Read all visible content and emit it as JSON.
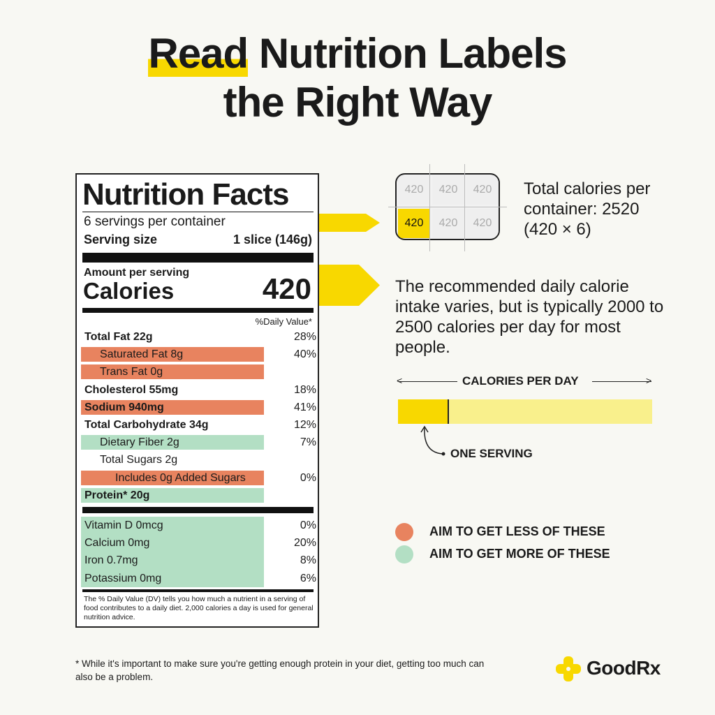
{
  "title": {
    "highlight": "Read",
    "line1_rest": " Nutrition Labels",
    "line2": "the Right Way"
  },
  "label": {
    "heading": "Nutrition Facts",
    "servings": "6 servings per container",
    "serving_size_label": "Serving size",
    "serving_size_value": "1 slice (146g)",
    "amount_per_serving": "Amount per serving",
    "calories_label": "Calories",
    "calories_value": "420",
    "dv_header": "%Daily Value*",
    "rows": [
      {
        "name": "Total Fat 22g",
        "dv": "28%",
        "bold": true,
        "indent": 0,
        "hl": ""
      },
      {
        "name": "Saturated Fat 8g",
        "dv": "40%",
        "bold": false,
        "indent": 1,
        "hl": "less"
      },
      {
        "name": "Trans Fat 0g",
        "dv": "",
        "bold": false,
        "indent": 1,
        "hl": "less"
      },
      {
        "name": "Cholesterol 55mg",
        "dv": "18%",
        "bold": true,
        "indent": 0,
        "hl": ""
      },
      {
        "name": "Sodium 940mg",
        "dv": "41%",
        "bold": true,
        "indent": 0,
        "hl": "less"
      },
      {
        "name": "Total Carbohydrate 34g",
        "dv": "12%",
        "bold": true,
        "indent": 0,
        "hl": ""
      },
      {
        "name": "Dietary Fiber 2g",
        "dv": "7%",
        "bold": false,
        "indent": 1,
        "hl": "more"
      },
      {
        "name": "Total Sugars 2g",
        "dv": "",
        "bold": false,
        "indent": 1,
        "hl": ""
      },
      {
        "name": "Includes 0g Added Sugars",
        "dv": "0%",
        "bold": false,
        "indent": 2,
        "hl": "less"
      },
      {
        "name": "Protein* 20g",
        "dv": "",
        "bold": true,
        "indent": 0,
        "hl": "more"
      }
    ],
    "vitamins": [
      {
        "name": "Vitamin D 0mcg",
        "dv": "0%"
      },
      {
        "name": "Calcium 0mg",
        "dv": "20%"
      },
      {
        "name": "Iron 0.7mg",
        "dv": "8%"
      },
      {
        "name": "Potassium 0mg",
        "dv": "6%"
      }
    ],
    "footnote": "The % Daily Value (DV) tells you how much a nutrient in a serving of food contributes to a daily diet. 2,000 calories a day is used for general nutrition advice."
  },
  "container": {
    "cells": [
      "420",
      "420",
      "420",
      "420",
      "420",
      "420"
    ],
    "highlighted_index": 3,
    "text": "Total calories per container: 2520 (420 × 6)"
  },
  "daily_text": "The recommended daily calorie intake varies, but is typically 2000 to 2500 calories per day for most people.",
  "calories_bar": {
    "label": "CALORIES PER DAY",
    "serving_label": "ONE SERVING",
    "serving_fraction": 0.2
  },
  "legend": [
    {
      "label": "AIM TO GET LESS OF THESE",
      "color": "#e8835f"
    },
    {
      "label": "AIM TO GET MORE OF THESE",
      "color": "#b3dfc4"
    }
  ],
  "colors": {
    "yellow": "#f8d800",
    "light_yellow": "#f9f08c",
    "less": "#e8835f",
    "more": "#b3dfc4",
    "background": "#f8f8f3"
  },
  "protein_note": "* While it's important to make sure you're getting enough protein in your diet, getting too much can also be a problem.",
  "brand": {
    "name": "GoodRx",
    "icon": "plus-cross-logo"
  }
}
